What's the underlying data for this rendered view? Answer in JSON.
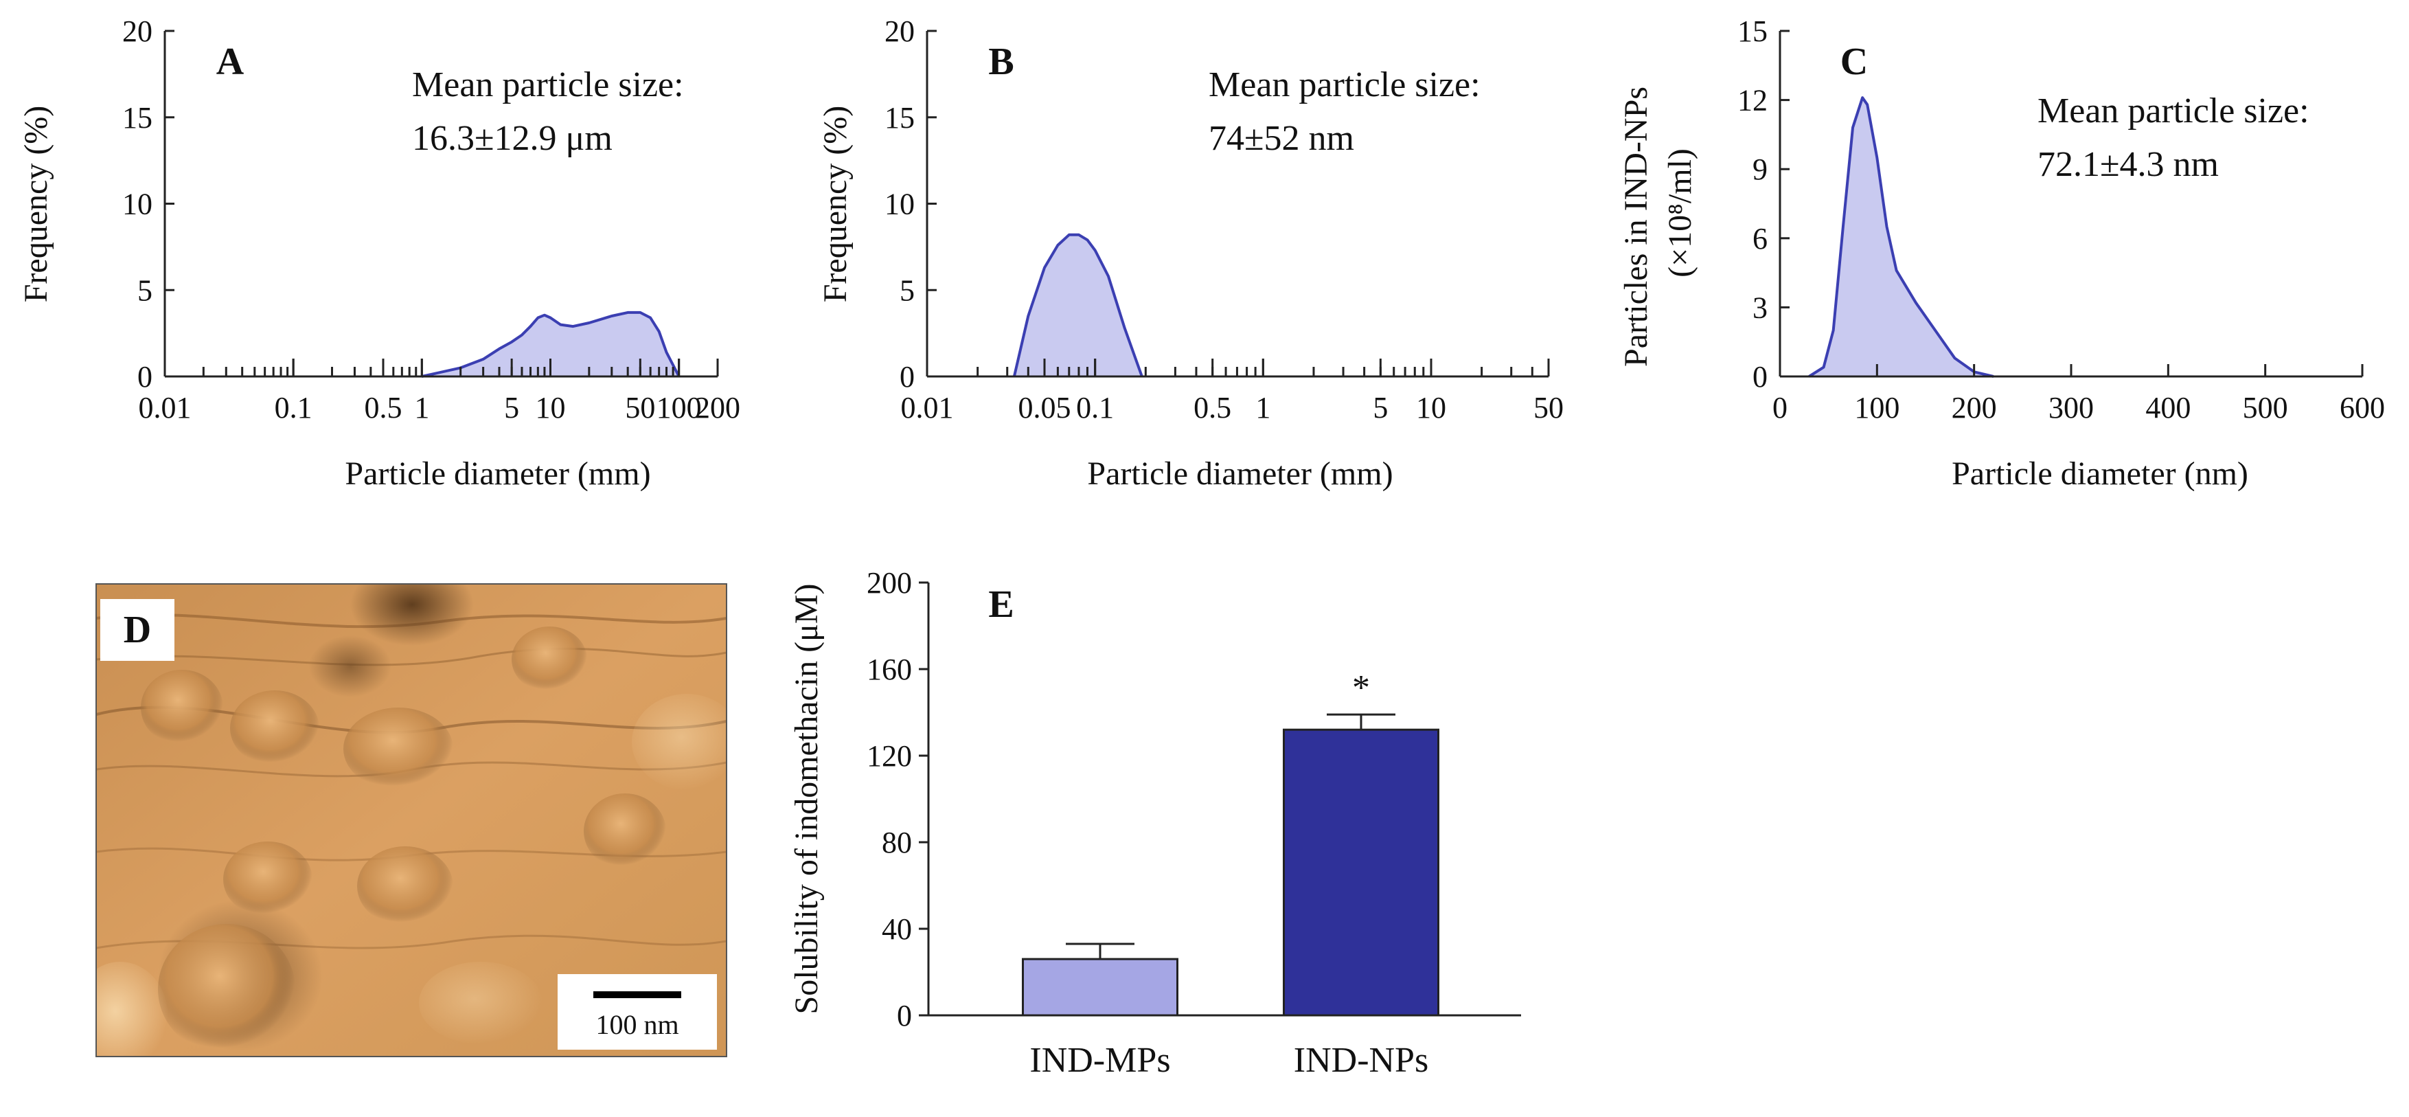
{
  "colors": {
    "dist_fill": "#c9caf0",
    "dist_stroke": "#3b3fb2",
    "bar_mps": "#a5a6e4",
    "bar_nps": "#2f3199",
    "axis": "#222222",
    "afm_base": "#d39a58"
  },
  "panel_d": {
    "label": "D",
    "scale_bar_label": "100 nm"
  },
  "chart_data": [
    {
      "id": "A",
      "type": "area",
      "panel_label": "A",
      "xscale": "log",
      "xlabel": "Particle diameter (mm)",
      "ylabel": "Frequency (%)",
      "xlim": [
        0.01,
        200
      ],
      "ylim": [
        0,
        20
      ],
      "yticks": [
        0,
        5,
        10,
        15,
        20
      ],
      "xticks_labeled": [
        {
          "v": 0.01,
          "label": "0.01"
        },
        {
          "v": 0.1,
          "label": "0.1"
        },
        {
          "v": 0.5,
          "label": "0.5"
        },
        {
          "v": 1,
          "label": "1"
        },
        {
          "v": 5,
          "label": "5"
        },
        {
          "v": 10,
          "label": "10"
        },
        {
          "v": 50,
          "label": "50"
        },
        {
          "v": 100,
          "label": "100"
        },
        {
          "v": 200,
          "label": "200"
        }
      ],
      "annotation_title": "Mean particle size:",
      "annotation_value": "16.3±12.9 μm",
      "x": [
        1,
        2,
        3,
        4,
        5,
        6,
        7,
        8,
        9,
        10,
        12,
        15,
        20,
        30,
        40,
        50,
        60,
        70,
        80,
        100
      ],
      "y": [
        0,
        0.5,
        1.0,
        1.6,
        2.0,
        2.4,
        2.9,
        3.4,
        3.55,
        3.4,
        3.0,
        2.9,
        3.1,
        3.5,
        3.7,
        3.7,
        3.4,
        2.6,
        1.4,
        0
      ]
    },
    {
      "id": "B",
      "type": "area",
      "panel_label": "B",
      "xscale": "log",
      "xlabel": "Particle diameter (mm)",
      "ylabel": "Frequency (%)",
      "xlim": [
        0.01,
        50
      ],
      "ylim": [
        0,
        20
      ],
      "yticks": [
        0,
        5,
        10,
        15,
        20
      ],
      "xticks_labeled": [
        {
          "v": 0.01,
          "label": "0.01"
        },
        {
          "v": 0.05,
          "label": "0.05"
        },
        {
          "v": 0.1,
          "label": "0.1"
        },
        {
          "v": 0.5,
          "label": "0.5"
        },
        {
          "v": 1,
          "label": "1"
        },
        {
          "v": 5,
          "label": "5"
        },
        {
          "v": 10,
          "label": "10"
        },
        {
          "v": 50,
          "label": "50"
        }
      ],
      "annotation_title": "Mean particle size:",
      "annotation_value": "74±52 nm",
      "x": [
        0.033,
        0.04,
        0.05,
        0.06,
        0.07,
        0.08,
        0.09,
        0.1,
        0.12,
        0.15,
        0.19
      ],
      "y": [
        0,
        3.5,
        6.3,
        7.6,
        8.2,
        8.2,
        7.9,
        7.3,
        5.8,
        2.8,
        0
      ]
    },
    {
      "id": "C",
      "type": "area",
      "panel_label": "C",
      "xscale": "linear",
      "xlabel": "Particle diameter (nm)",
      "ylabel_line1": "Particles in IND-NPs",
      "ylabel_line2": "(×10⁸/ml)",
      "xlim": [
        0,
        600
      ],
      "ylim": [
        0,
        15
      ],
      "yticks": [
        0,
        3,
        6,
        9,
        12,
        15
      ],
      "xticks": [
        0,
        100,
        200,
        300,
        400,
        500,
        600
      ],
      "annotation_title": "Mean particle size:",
      "annotation_value": "72.1±4.3 nm",
      "x": [
        30,
        45,
        55,
        65,
        75,
        85,
        90,
        100,
        110,
        120,
        140,
        160,
        180,
        200,
        220
      ],
      "y": [
        0,
        0.4,
        2.0,
        6.5,
        10.8,
        12.1,
        11.8,
        9.5,
        6.5,
        4.6,
        3.2,
        2.0,
        0.8,
        0.2,
        0
      ]
    },
    {
      "id": "E",
      "type": "bar",
      "panel_label": "E",
      "categories": [
        "IND-MPs",
        "IND-NPs"
      ],
      "values": [
        26,
        132
      ],
      "errors": [
        7,
        7
      ],
      "significance": [
        "",
        "*"
      ],
      "ylabel": "Solubility of indomethacin (μM)",
      "ylim": [
        0,
        200
      ],
      "yticks": [
        0,
        40,
        80,
        120,
        160,
        200
      ]
    }
  ]
}
